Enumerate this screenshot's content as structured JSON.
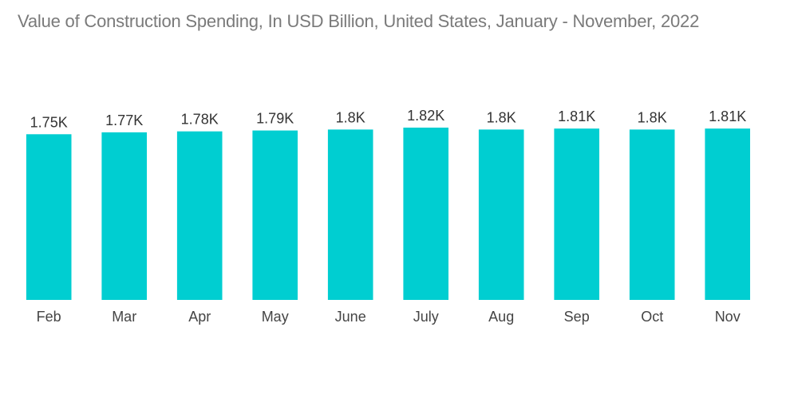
{
  "chart_data": {
    "type": "bar",
    "title": "Value of Construction Spending, In USD Billion, United States, January - November, 2022",
    "xlabel": "",
    "ylabel": "",
    "categories": [
      "Feb",
      "Mar",
      "Apr",
      "May",
      "June",
      "July",
      "Aug",
      "Sep",
      "Oct",
      "Nov"
    ],
    "values": [
      1750,
      1770,
      1780,
      1790,
      1800,
      1820,
      1800,
      1810,
      1800,
      1810
    ],
    "value_labels": [
      "1.75K",
      "1.77K",
      "1.78K",
      "1.79K",
      "1.8K",
      "1.82K",
      "1.8K",
      "1.81K",
      "1.8K",
      "1.81K"
    ],
    "ylim": [
      0,
      1820
    ],
    "grid": false,
    "legend": "none",
    "bar_color": "#00CED1"
  }
}
